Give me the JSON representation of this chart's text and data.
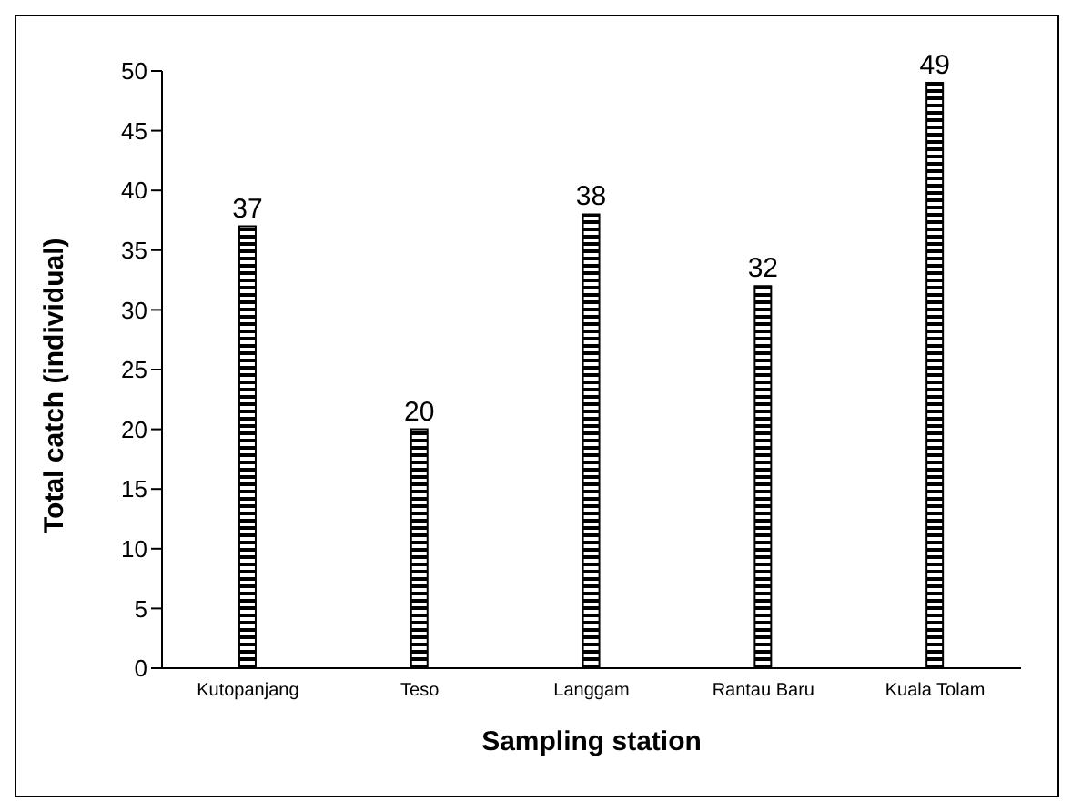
{
  "chart_data": {
    "type": "bar",
    "xlabel": "Sampling station",
    "ylabel": "Total catch (individual)",
    "categories": [
      "Kutopanjang",
      "Teso",
      "Langgam",
      "Rantau Baru",
      "Kuala Tolam"
    ],
    "values": [
      37,
      20,
      38,
      32,
      49
    ],
    "color": "#000000",
    "ylim": [
      0,
      50
    ],
    "yticks": [
      0,
      5,
      10,
      15,
      20,
      25,
      30,
      35,
      40,
      45,
      50
    ],
    "grid": false,
    "legend": false,
    "data_labels": true
  }
}
